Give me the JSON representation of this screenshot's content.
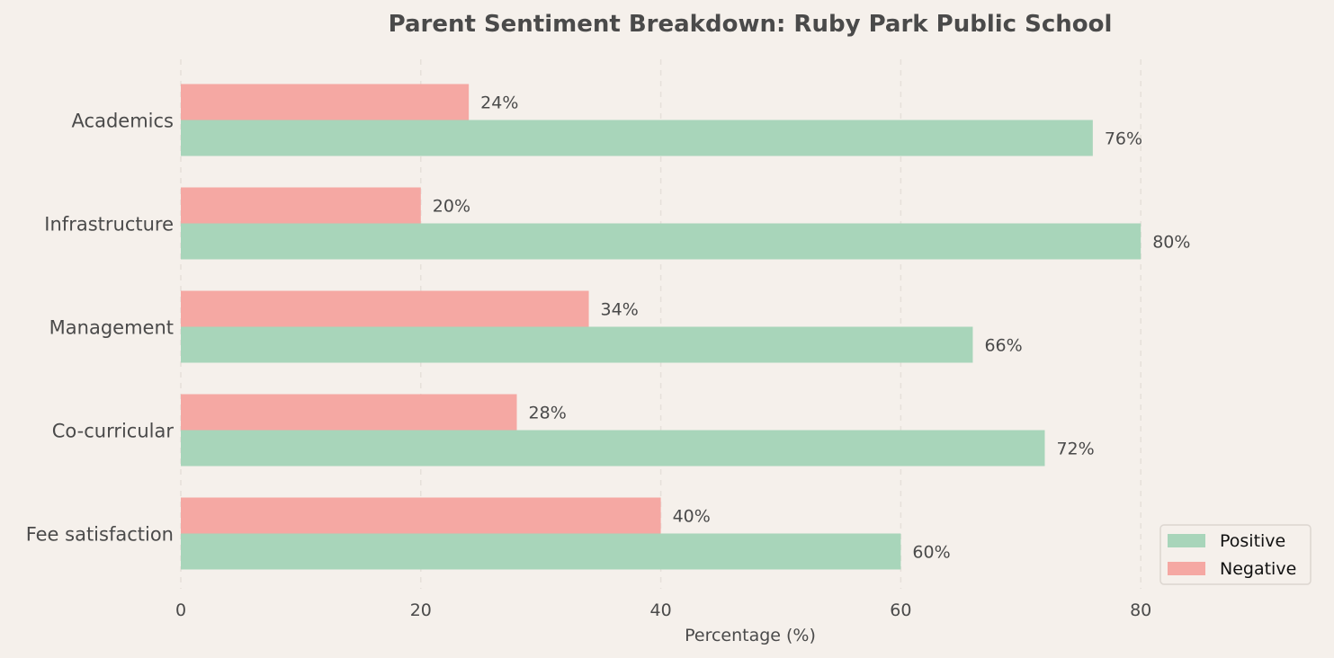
{
  "chart_data": {
    "type": "bar",
    "orientation": "horizontal",
    "title": "Parent Sentiment Breakdown: Ruby Park Public School",
    "xlabel": "Percentage (%)",
    "ylabel": "",
    "categories": [
      "Academics",
      "Infrastructure",
      "Management",
      "Co-curricular",
      "Fee satisfaction"
    ],
    "series": [
      {
        "name": "Positive",
        "values": [
          76,
          80,
          66,
          72,
          60
        ],
        "color": "#a8d5ba"
      },
      {
        "name": "Negative",
        "values": [
          24,
          20,
          34,
          28,
          40
        ],
        "color": "#f5a8a3"
      }
    ],
    "value_suffix": "%",
    "xlim": [
      0,
      95
    ],
    "xticks": [
      0,
      20,
      40,
      60,
      80
    ],
    "grid": "x-dashed",
    "legend_position": "lower-right"
  }
}
